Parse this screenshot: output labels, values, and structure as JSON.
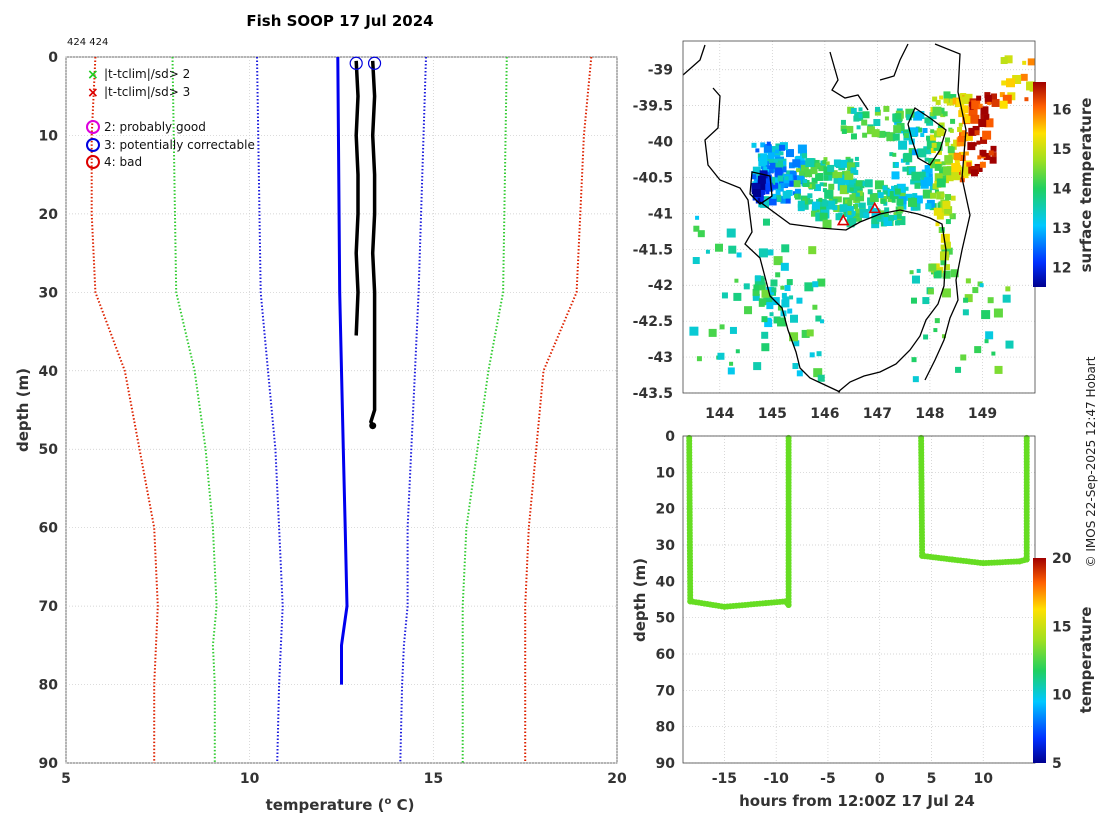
{
  "figure": {
    "title": "Fish SOOP 17 Jul 2024",
    "subtitle": "424 424",
    "copyright": "© IMOS 22-Sep-2025 12:47 Hobart"
  },
  "chart_data": [
    {
      "id": "profile",
      "type": "line",
      "xlabel": "temperature (",
      "xlabel_sup": "o",
      "xlabel_tail": " C)",
      "ylabel": "depth (m)",
      "xlim": [
        5,
        20
      ],
      "ylim": [
        90,
        0
      ],
      "xticks": [
        "5",
        "10",
        "15",
        "20"
      ],
      "yticks": [
        "0",
        "10",
        "20",
        "30",
        "40",
        "50",
        "60",
        "70",
        "80",
        "90"
      ],
      "legend": [
        {
          "marker": "x",
          "color": "#22cc22",
          "label": "|t-tclim|/sd> 2"
        },
        {
          "marker": "x",
          "color": "#dd0000",
          "label": "|t-tclim|/sd> 3"
        },
        {
          "marker": "o",
          "color": "#dd00dd",
          "label": "2: probably good"
        },
        {
          "marker": "o",
          "color": "#0000dd",
          "label": "3: potentially correctable"
        },
        {
          "marker": "o",
          "color": "#dd0000",
          "label": "4: bad"
        }
      ],
      "series": [
        {
          "name": "mean",
          "style": "solid",
          "color": "#0000ee",
          "depth": [
            0,
            30,
            40,
            50,
            60,
            70,
            75,
            80
          ],
          "temp": [
            12.4,
            12.45,
            12.5,
            12.55,
            12.6,
            12.65,
            12.5,
            12.5
          ]
        },
        {
          "name": "-1sd",
          "style": "dotted",
          "color": "#1c1cdd",
          "depth": [
            0,
            30,
            40,
            50,
            60,
            70,
            75,
            80,
            90
          ],
          "temp": [
            10.2,
            10.3,
            10.5,
            10.7,
            10.8,
            10.9,
            10.85,
            10.8,
            10.75
          ]
        },
        {
          "name": "+1sd",
          "style": "dotted",
          "color": "#1c1cdd",
          "depth": [
            0,
            30,
            40,
            50,
            60,
            70,
            75,
            80,
            90
          ],
          "temp": [
            14.8,
            14.6,
            14.5,
            14.4,
            14.3,
            14.3,
            14.2,
            14.15,
            14.1
          ]
        },
        {
          "name": "-2sd",
          "style": "dotted",
          "color": "#33cc33",
          "depth": [
            0,
            30,
            40,
            50,
            60,
            70,
            75,
            80,
            90
          ],
          "temp": [
            7.9,
            8.0,
            8.5,
            8.8,
            9.0,
            9.1,
            9.0,
            9.05,
            9.05
          ]
        },
        {
          "name": "+2sd",
          "style": "dotted",
          "color": "#33cc33",
          "depth": [
            0,
            30,
            40,
            50,
            60,
            70,
            75,
            80,
            90
          ],
          "temp": [
            17.0,
            16.9,
            16.5,
            16.2,
            15.9,
            15.8,
            15.8,
            15.8,
            15.8
          ]
        },
        {
          "name": "-3sd",
          "style": "dotted",
          "color": "#dd2200",
          "depth": [
            0,
            10,
            20,
            30,
            40,
            50,
            60,
            70,
            75,
            80,
            90
          ],
          "temp": [
            5.8,
            5.7,
            5.7,
            5.8,
            6.6,
            7.0,
            7.4,
            7.5,
            7.45,
            7.4,
            7.4
          ]
        },
        {
          "name": "+3sd",
          "style": "dotted",
          "color": "#dd2200",
          "depth": [
            0,
            10,
            20,
            30,
            40,
            50,
            60,
            70,
            75,
            80,
            90
          ],
          "temp": [
            19.3,
            19.1,
            19.0,
            18.9,
            18.0,
            17.8,
            17.6,
            17.5,
            17.5,
            17.5,
            17.5
          ]
        },
        {
          "name": "profile-1",
          "style": "solid",
          "color": "#000000",
          "depth": [
            0.5,
            5,
            10,
            15,
            20,
            25,
            30,
            35.5
          ],
          "temp": [
            12.9,
            12.95,
            12.9,
            12.95,
            12.95,
            12.9,
            12.95,
            12.9
          ]
        },
        {
          "name": "profile-2",
          "style": "solid",
          "color": "#000000",
          "depth": [
            0.5,
            5,
            10,
            15,
            20,
            25,
            30,
            35,
            40,
            45,
            46.5,
            47
          ],
          "temp": [
            13.35,
            13.4,
            13.35,
            13.4,
            13.4,
            13.35,
            13.4,
            13.4,
            13.4,
            13.4,
            13.3,
            13.35
          ]
        }
      ],
      "flags": [
        {
          "label": "3",
          "depth": 0.8,
          "temp": 12.9
        },
        {
          "label": "3",
          "depth": 0.8,
          "temp": 13.4
        }
      ]
    },
    {
      "id": "map",
      "type": "heatmap",
      "xlim": [
        143.3,
        150.0
      ],
      "ylim": [
        -43.5,
        -38.6
      ],
      "xticks": [
        "144",
        "145",
        "146",
        "147",
        "148",
        "149"
      ],
      "yticks": [
        "-39",
        "-39.5",
        "-40",
        "-40.5",
        "-41",
        "-41.5",
        "-42",
        "-42.5",
        "-43",
        "-43.5"
      ],
      "colorbar": {
        "label": "surface temperature",
        "range": [
          11.5,
          16.7
        ],
        "ticks": [
          "12",
          "13",
          "14",
          "15",
          "16"
        ]
      },
      "stations": [
        {
          "lon": 146.35,
          "lat": -41.1
        },
        {
          "lon": 146.95,
          "lat": -40.93
        }
      ]
    },
    {
      "id": "section",
      "type": "scatter",
      "xlabel": "hours from 12:00Z 17 Jul 24",
      "ylabel": "depth (m)",
      "xlim": [
        -19,
        15
      ],
      "ylim": [
        90,
        0
      ],
      "xticks": [
        "-15",
        "-10",
        "-5",
        "0",
        "5",
        "10"
      ],
      "yticks": [
        "0",
        "10",
        "20",
        "30",
        "40",
        "50",
        "60",
        "70",
        "80",
        "90"
      ],
      "colorbar": {
        "label": "temperature",
        "range": [
          5,
          20
        ],
        "ticks": [
          "5",
          "10",
          "15",
          "20"
        ]
      },
      "casts": [
        {
          "hours": [
            -18.4,
            -18.3,
            -15,
            -11,
            -9.1,
            -8.8,
            -8.8
          ],
          "depth": [
            0.5,
            45.5,
            47,
            46,
            45.5,
            46.5,
            0.5
          ],
          "temp": 11.3
        },
        {
          "hours": [
            4,
            4.1,
            7,
            10,
            13.5,
            14.2,
            14.2
          ],
          "depth": [
            0.5,
            33,
            34,
            35,
            34.5,
            34,
            0.5
          ],
          "temp": 11.6
        }
      ]
    }
  ]
}
